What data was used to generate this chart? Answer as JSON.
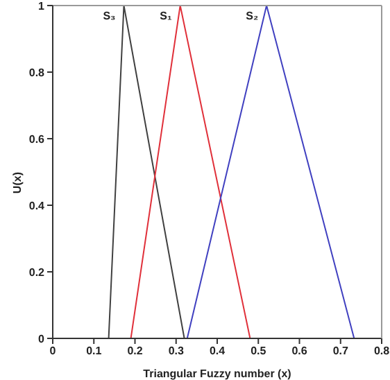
{
  "chart_data": {
    "type": "line",
    "xlabel": "Triangular Fuzzy number (x)",
    "ylabel": "U(x)",
    "xlim": [
      0,
      0.8
    ],
    "xticks": [
      0,
      0.1,
      0.2,
      0.3,
      0.4,
      0.5,
      0.6,
      0.7,
      0.8
    ],
    "ylim": [
      0,
      1
    ],
    "yticks": [
      0,
      0.2,
      0.4,
      0.6,
      0.8,
      1
    ],
    "marker": "none",
    "series": [
      {
        "name": "S₃",
        "color": "#404040",
        "x": [
          0.136,
          0.173,
          0.32
        ],
        "values": [
          0,
          1,
          0
        ]
      },
      {
        "name": "S₁",
        "color": "#e0303a",
        "x": [
          0.19,
          0.31,
          0.48
        ],
        "values": [
          0,
          1,
          0
        ]
      },
      {
        "name": "S₂",
        "color": "#4040c0",
        "x": [
          0.327,
          0.52,
          0.733
        ],
        "values": [
          0,
          1,
          0
        ]
      }
    ]
  }
}
